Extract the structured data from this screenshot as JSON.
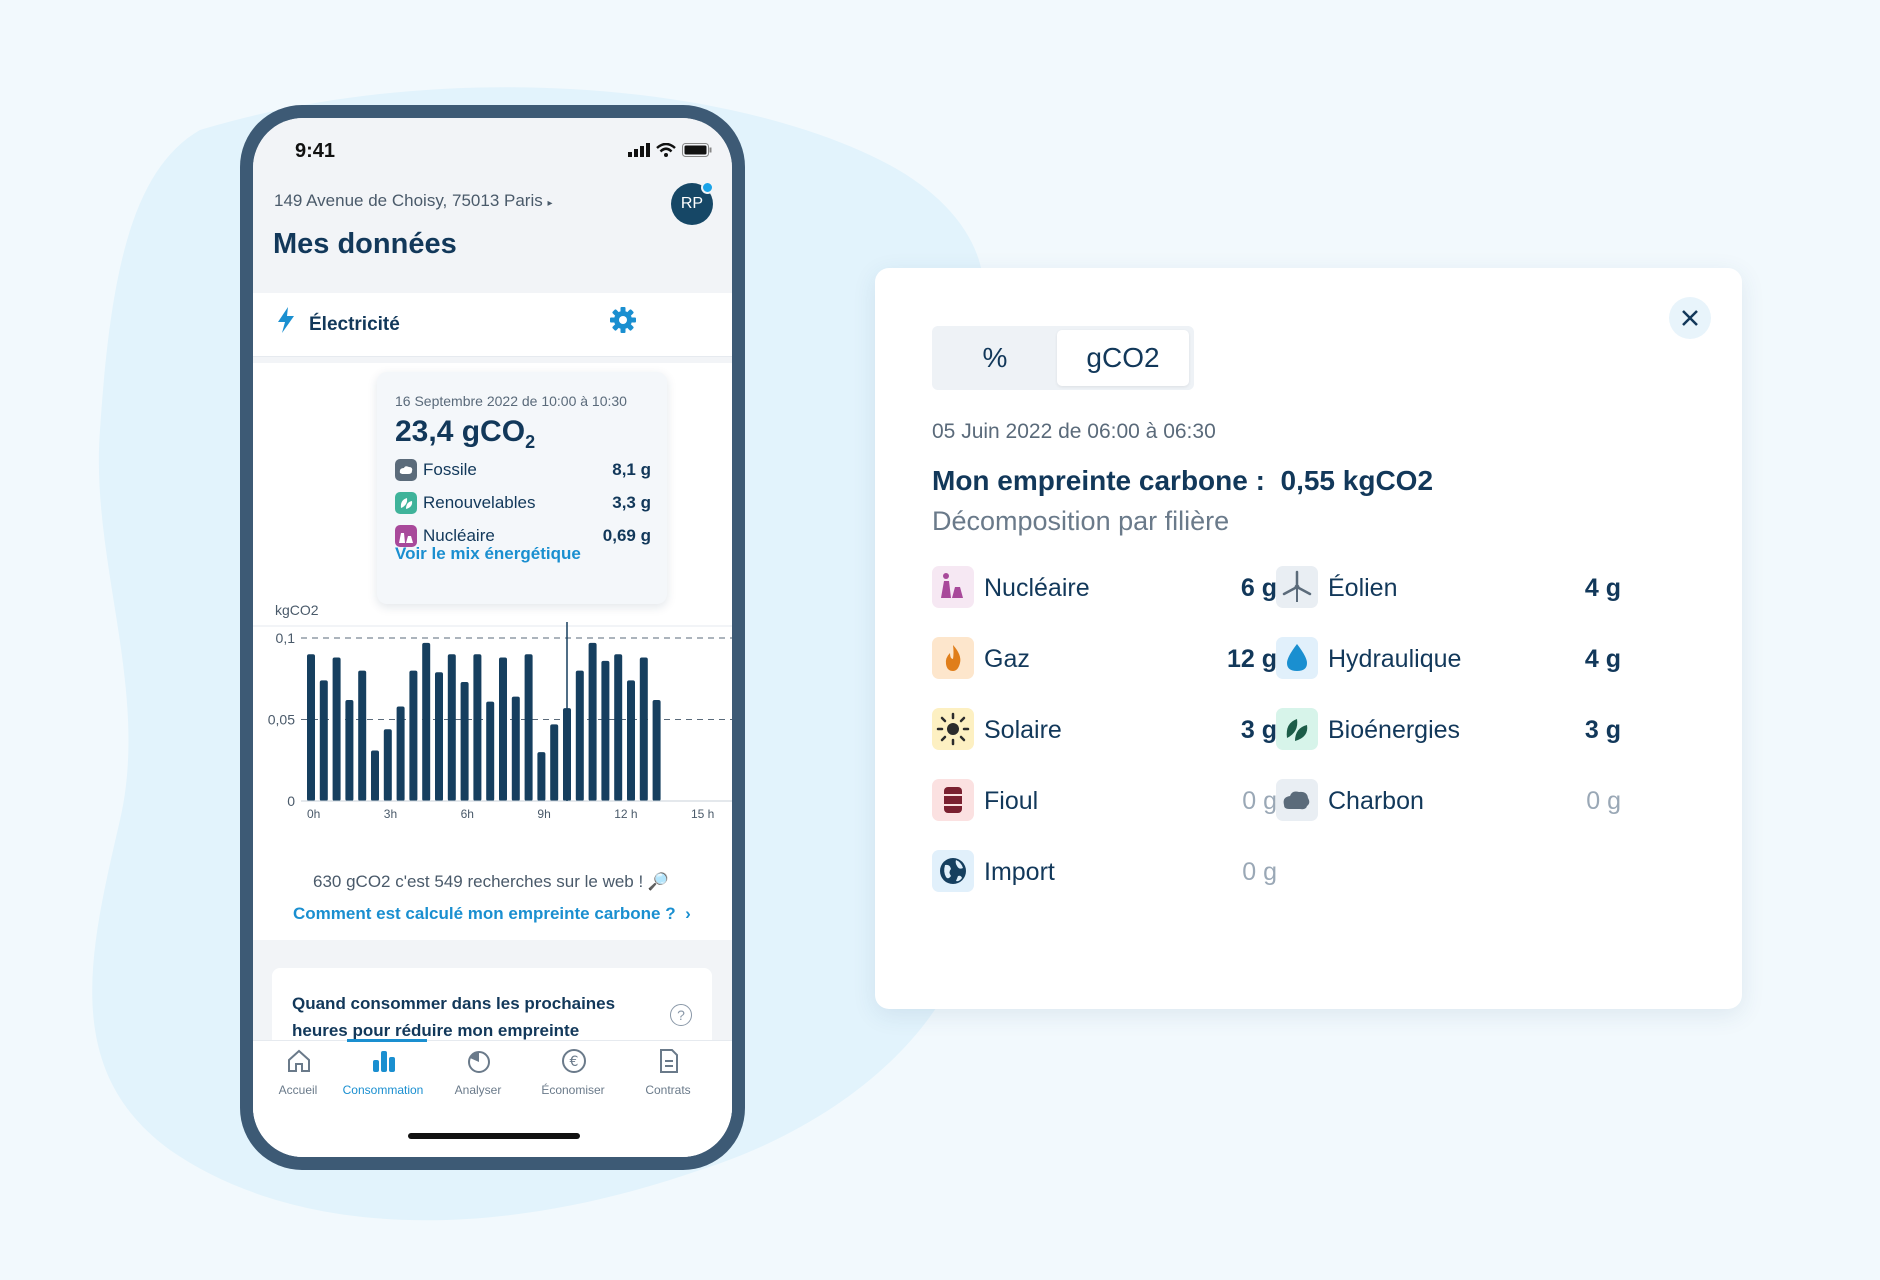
{
  "status_bar": {
    "time": "9:41"
  },
  "header": {
    "address": "149 Avenue de Choisy, 75013 Paris",
    "avatar_initials": "RP",
    "title": "Mes données"
  },
  "energy_section": {
    "label": "Électricité"
  },
  "tooltip": {
    "date": "16 Septembre 2022 de 10:00 à 10:30",
    "value_text": "23,4 gCO",
    "value_sub": "2",
    "rows": [
      {
        "label": "Fossile",
        "value": "8,1 g",
        "color": "#5b6b7a"
      },
      {
        "label": "Renouvelables",
        "value": "3,3 g",
        "color": "#3fb39a"
      },
      {
        "label": "Nucléaire",
        "value": "0,69 g",
        "color": "#a8499a"
      }
    ],
    "link": "Voir le mix énergétique"
  },
  "chart_data": {
    "type": "bar",
    "ylabel": "kgCO2",
    "ylim": [
      0,
      0.1
    ],
    "y_ticks": [
      {
        "value": 0.1,
        "label": "0,1"
      },
      {
        "value": 0.05,
        "label": "0,05"
      },
      {
        "value": 0,
        "label": "0"
      }
    ],
    "x_ticks": [
      {
        "x": 0,
        "label": "0h"
      },
      {
        "x": 3,
        "label": "3h"
      },
      {
        "x": 6,
        "label": "6h"
      },
      {
        "x": 9,
        "label": "9h"
      },
      {
        "x": 12,
        "label": "12 h"
      },
      {
        "x": 15,
        "label": "15 h"
      }
    ],
    "x_step": 0.5,
    "values": [
      0.09,
      0.074,
      0.088,
      0.062,
      0.08,
      0.031,
      0.044,
      0.058,
      0.08,
      0.097,
      0.079,
      0.09,
      0.073,
      0.09,
      0.061,
      0.088,
      0.064,
      0.09,
      0.03,
      0.047,
      0.057,
      0.08,
      0.097,
      0.086,
      0.09,
      0.074,
      0.088,
      0.062
    ],
    "selected_x": 10,
    "color": "#163f5f"
  },
  "stat_text": "630 gCO2 c'est 549 recherches sur le web ! 🔎",
  "calc_link": "Comment est calculé mon empreinte carbone ?",
  "question": {
    "text": "Quand consommer dans les prochaines heures pour réduire mon empreinte carbone ?",
    "help": "?"
  },
  "nav": [
    {
      "label": "Accueil"
    },
    {
      "label": "Consommation"
    },
    {
      "label": "Analyser"
    },
    {
      "label": "Économiser"
    },
    {
      "label": "Contrats"
    }
  ],
  "panel": {
    "toggle_options": [
      "%",
      "gCO2"
    ],
    "active_toggle": "gCO2",
    "date": "05 Juin 2022 de 06:00 à 06:30",
    "title_prefix": "Mon empreinte carbone :",
    "title_value": "0,55 kgCO2",
    "subtitle": "Décomposition par filière",
    "sources": [
      {
        "label": "Nucléaire",
        "value": "6 g",
        "icon": "nuclear-icon",
        "bg": "#f6e8f3",
        "fg": "#a8499a"
      },
      {
        "label": "Éolien",
        "value": "4 g",
        "icon": "wind-icon",
        "bg": "#e9eef3",
        "fg": "#5b6b7a"
      },
      {
        "label": "Gaz",
        "value": "12 g",
        "icon": "flame-icon",
        "bg": "#fde6cc",
        "fg": "#e07e1a"
      },
      {
        "label": "Hydraulique",
        "value": "4 g",
        "icon": "water-drop-icon",
        "bg": "#e1f0fb",
        "fg": "#1a8fd0"
      },
      {
        "label": "Solaire",
        "value": "3 g",
        "icon": "sun-icon",
        "bg": "#fdf0c2",
        "fg": "#2b2b2b"
      },
      {
        "label": "Bioénergies",
        "value": "3 g",
        "icon": "leaves-icon",
        "bg": "#d7f4ea",
        "fg": "#1c5c48"
      },
      {
        "label": "Fioul",
        "value": "0 g",
        "icon": "barrel-icon",
        "bg": "#fbe1e1",
        "fg": "#7a2030"
      },
      {
        "label": "Charbon",
        "value": "0 g",
        "icon": "coal-icon",
        "bg": "#e9eef3",
        "fg": "#5b6b7a"
      },
      {
        "label": "Import",
        "value": "0 g",
        "icon": "globe-icon",
        "bg": "#e1f0fb",
        "fg": "#163f5f"
      }
    ]
  }
}
